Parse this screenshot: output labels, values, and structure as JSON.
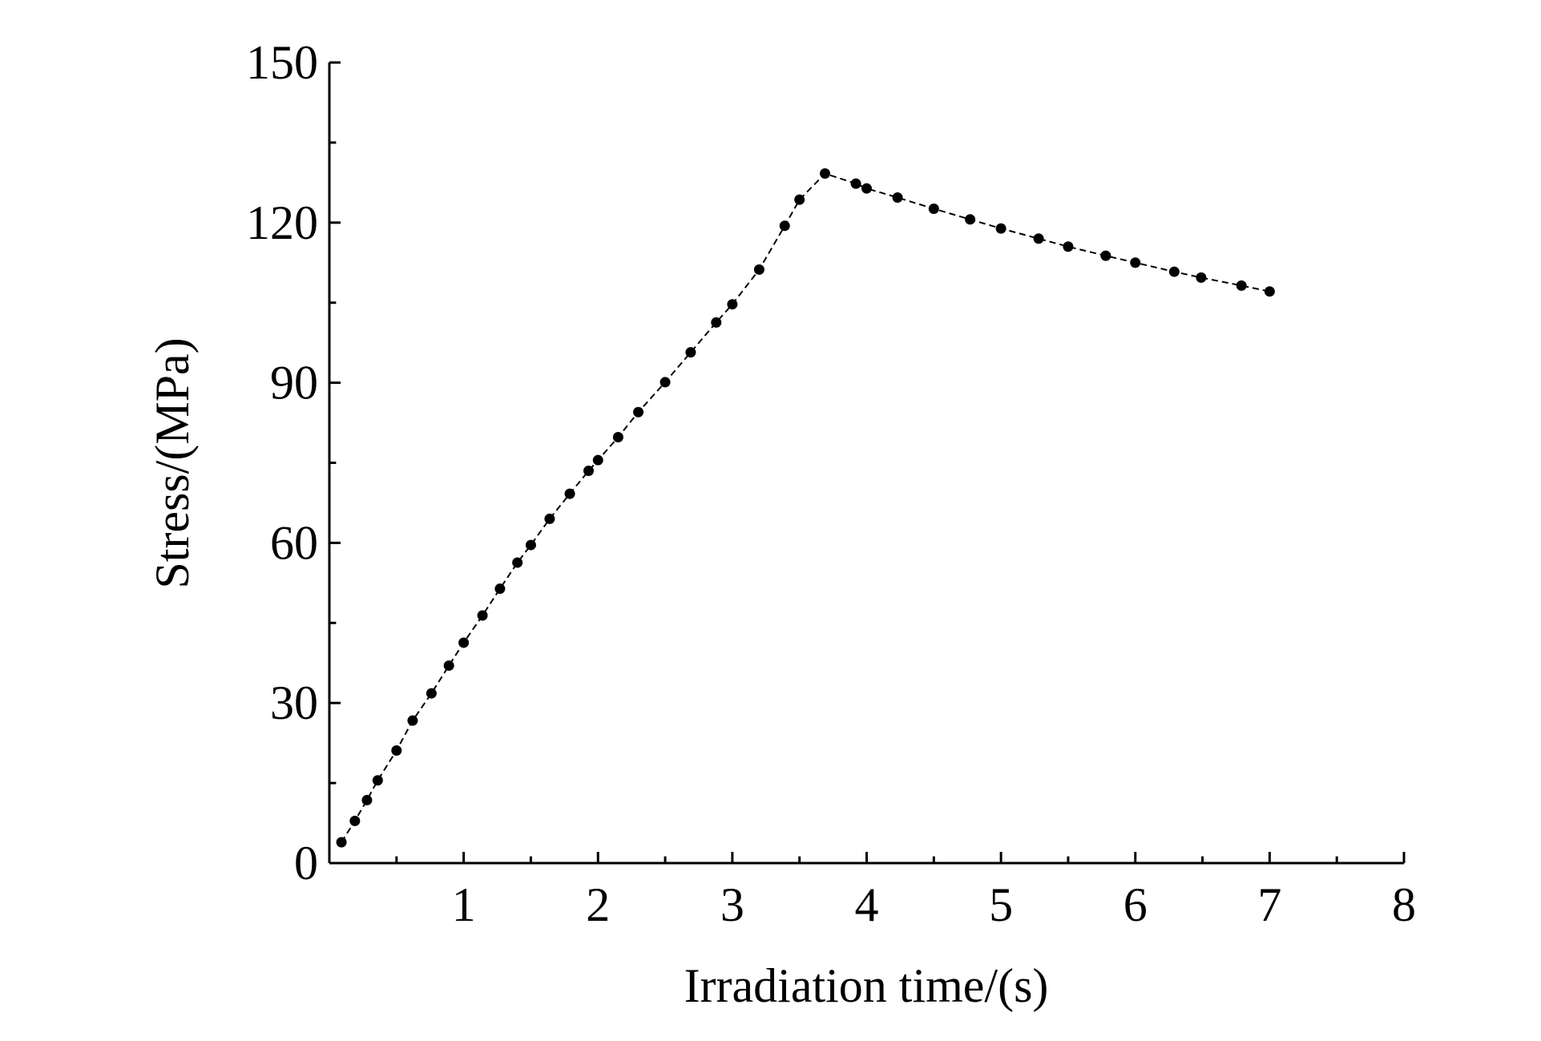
{
  "chart_data": {
    "type": "line",
    "x_label": "Irradiation time/(s)",
    "y_label": "Stress/(MPa)",
    "x": [
      0.09,
      0.19,
      0.28,
      0.36,
      0.5,
      0.62,
      0.76,
      0.89,
      1.0,
      1.14,
      1.27,
      1.4,
      1.5,
      1.64,
      1.79,
      1.93,
      2.0,
      2.15,
      2.3,
      2.5,
      2.69,
      2.88,
      3.0,
      3.2,
      3.39,
      3.5,
      3.69,
      3.92,
      4.0,
      4.23,
      4.5,
      4.77,
      5.0,
      5.28,
      5.5,
      5.78,
      6.0,
      6.29,
      6.49,
      6.79,
      7.0
    ],
    "series": [
      {
        "color": "#000000",
        "values": [
          3.9,
          7.9,
          11.8,
          15.5,
          21.1,
          26.7,
          31.8,
          37.0,
          41.3,
          46.4,
          51.4,
          56.3,
          59.6,
          64.5,
          69.2,
          73.5,
          75.5,
          79.8,
          84.5,
          90.1,
          95.7,
          101.3,
          104.7,
          111.2,
          119.4,
          124.3,
          129.2,
          127.3,
          126.4,
          124.7,
          122.6,
          120.6,
          118.9,
          117.0,
          115.5,
          113.8,
          112.5,
          110.8,
          109.7,
          108.2,
          107.1
        ]
      }
    ],
    "xlim": [
      0,
      8
    ],
    "xticks": [
      1,
      2,
      3,
      4,
      5,
      6,
      7,
      8
    ],
    "ylim": [
      0,
      150
    ],
    "yticks": [
      0,
      30,
      60,
      90,
      120,
      150
    ],
    "grid": false
  }
}
